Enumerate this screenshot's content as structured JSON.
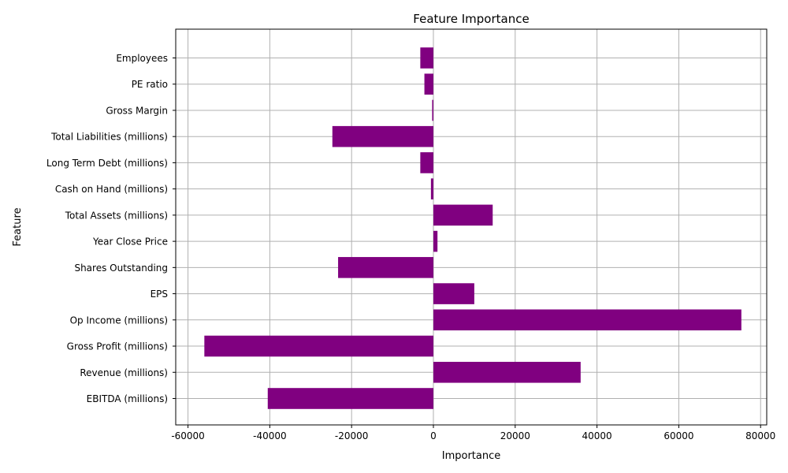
{
  "chart_data": {
    "type": "bar",
    "orientation": "horizontal",
    "title": "Feature Importance",
    "xlabel": "Importance",
    "ylabel": "Feature",
    "xlim": [
      -63000,
      81500
    ],
    "xticks": [
      -60000,
      -40000,
      -20000,
      0,
      20000,
      40000,
      60000,
      80000
    ],
    "grid": true,
    "bar_color": "#800080",
    "categories": [
      "EBITDA (millions)",
      "Revenue (millions)",
      "Gross Profit (millions)",
      "Op Income (millions)",
      "EPS",
      "Shares Outstanding",
      "Year Close Price",
      "Total Assets (millions)",
      "Cash on Hand (millions)",
      "Long Term Debt (millions)",
      "Total Liabilities (millions)",
      "Gross Margin",
      "PE ratio",
      "Employees"
    ],
    "values": [
      -40500,
      36000,
      -56000,
      75300,
      10000,
      -23300,
      1000,
      14500,
      -600,
      -3200,
      -24700,
      -300,
      -2200,
      -3200
    ]
  }
}
